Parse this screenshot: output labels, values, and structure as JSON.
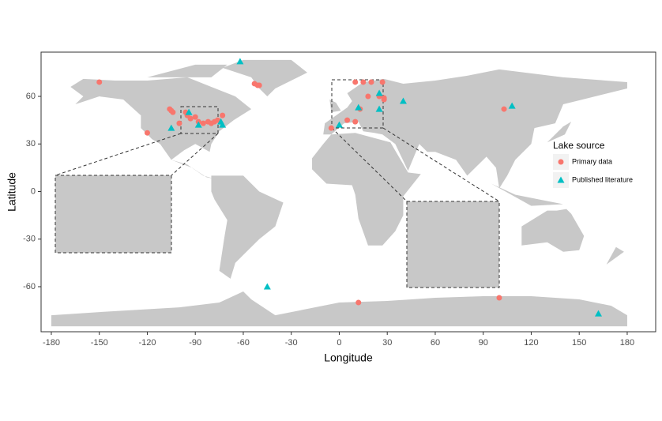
{
  "chart_data": {
    "type": "scatter",
    "x_label": "Longitude",
    "y_label": "Latitude",
    "xlim": [
      -186.4,
      197.8
    ],
    "ylim": [
      -88.4,
      87.9
    ],
    "xticks": [
      -180,
      -150,
      -120,
      -90,
      -60,
      -30,
      0,
      30,
      60,
      90,
      120,
      150,
      180
    ],
    "yticks": [
      -60,
      -30,
      0,
      30,
      60
    ],
    "legend_title": "Lake source",
    "series": [
      {
        "name": "Primary data",
        "color": "#F8766D",
        "x": [
          -150,
          -106,
          -105,
          -104,
          -120,
          -95,
          -93,
          -90,
          -88,
          -85,
          -82,
          -80,
          -78,
          -76,
          -73,
          -100,
          -96,
          -53,
          -51,
          -50,
          10,
          15,
          20,
          27,
          18,
          25,
          28,
          28,
          13,
          5,
          10,
          -5,
          103,
          12,
          100
        ],
        "values": [
          69,
          52,
          51,
          50,
          37,
          48,
          46,
          47,
          44,
          43,
          44,
          43,
          44,
          45,
          48,
          43,
          50,
          68,
          67,
          67,
          69,
          69,
          69,
          69,
          60,
          60,
          59,
          58,
          52,
          45,
          44,
          40,
          52,
          -70,
          -67
        ]
      },
      {
        "name": "Published literature",
        "color": "#00BFC4",
        "x": [
          -62,
          -105,
          -94,
          -88,
          -74,
          -73,
          12,
          0,
          25,
          25,
          40,
          108,
          -45,
          162
        ],
        "values": [
          82,
          40,
          50,
          42,
          44,
          42,
          53,
          42,
          52,
          62,
          57,
          54,
          -60,
          -77
        ]
      }
    ]
  }
}
